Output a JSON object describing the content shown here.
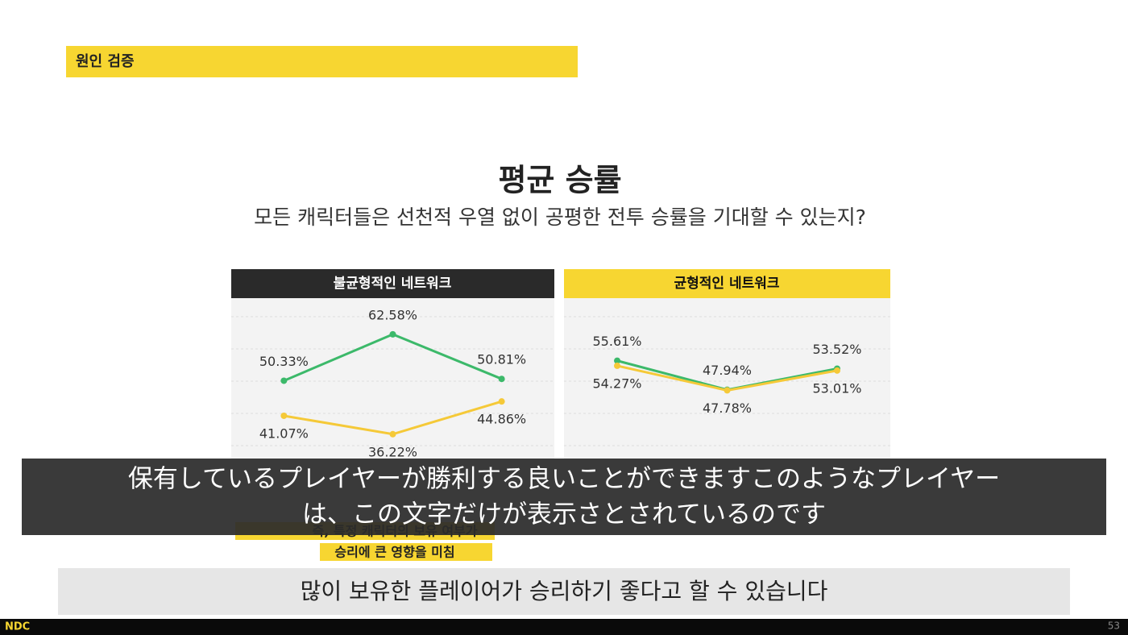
{
  "section_label": "원인 검증",
  "title": "평균 승률",
  "subtitle": "모든 캐릭터들은 선천적 우열 없이 공평한 전투 승률을 기대할 수 있는지?",
  "chart_data": [
    {
      "type": "line",
      "title": "불균형적인 네트워크",
      "categories": [
        null,
        null,
        null
      ],
      "ylim": [
        30,
        70
      ],
      "series": [
        {
          "color": "#3cb96a",
          "values": [
            50.33,
            62.58,
            50.81
          ],
          "value_labels": [
            "50.33%",
            "62.58%",
            "50.81%"
          ]
        },
        {
          "color": "#f5c938",
          "values": [
            41.07,
            36.22,
            44.86
          ],
          "value_labels": [
            "41.07%",
            "36.22%",
            "44.86%"
          ]
        }
      ]
    },
    {
      "type": "line",
      "title": "균형적인 네트워크",
      "categories": [
        null,
        null,
        null
      ],
      "ylim": [
        30,
        70
      ],
      "series": [
        {
          "color": "#3cb96a",
          "values": [
            55.61,
            47.94,
            53.52
          ],
          "value_labels": [
            "55.61%",
            "47.94%",
            "53.52%"
          ]
        },
        {
          "color": "#f5c938",
          "values": [
            54.27,
            47.78,
            53.01
          ],
          "value_labels": [
            "54.27%",
            "47.78%",
            "53.01%"
          ]
        }
      ]
    }
  ],
  "note_lines": [
    "즉, 특정 캐릭터의 보유 여부가",
    "승리에 큰 영향을 미침"
  ],
  "conclusion": "많이 보유한 플레이어가 승리하기 좋다고 할 수 있습니다",
  "caption_lines": [
    "保有しているプレイヤーが勝利する良いことができますこのようなプレイヤー",
    "は、この文字だけが表示さとされているのです"
  ],
  "footer": {
    "logo": "NDC",
    "page": 53
  }
}
